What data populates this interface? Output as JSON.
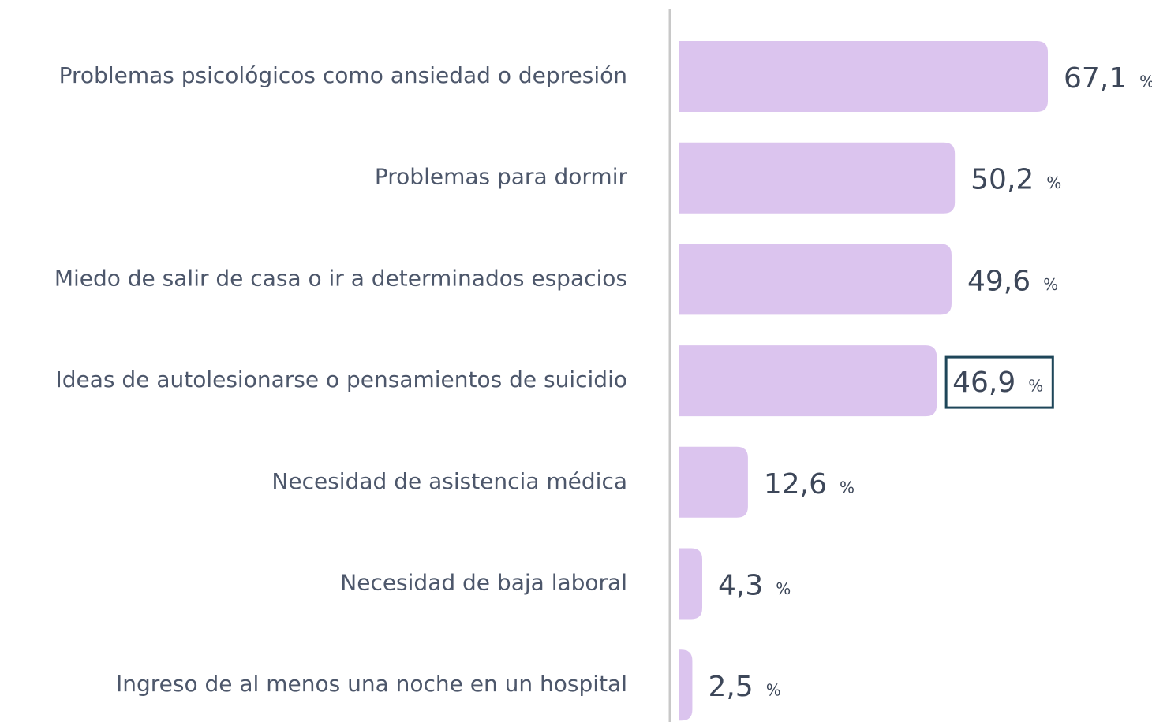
{
  "chart_data": {
    "type": "bar",
    "orientation": "horizontal",
    "categories": [
      "Problemas psicológicos como ansiedad o depresión",
      "Problemas para dormir",
      "Miedo de salir de casa o ir a determinados espacios",
      "Ideas de autolesionarse o pensamientos de suicidio",
      "Necesidad de asistencia médica",
      "Necesidad de baja laboral",
      "Ingreso de al menos una noche en un hospital"
    ],
    "values": [
      67.1,
      50.2,
      49.6,
      46.9,
      12.6,
      4.3,
      2.5
    ],
    "value_labels": [
      "67,1",
      "50,2",
      "49,6",
      "46,9",
      "12,6",
      "4,3",
      "2,5"
    ],
    "unit": "%",
    "color": "#dbc4ee",
    "xlim": [
      0,
      80
    ],
    "highlight_index": 3,
    "highlight_color": "#1e4659"
  }
}
